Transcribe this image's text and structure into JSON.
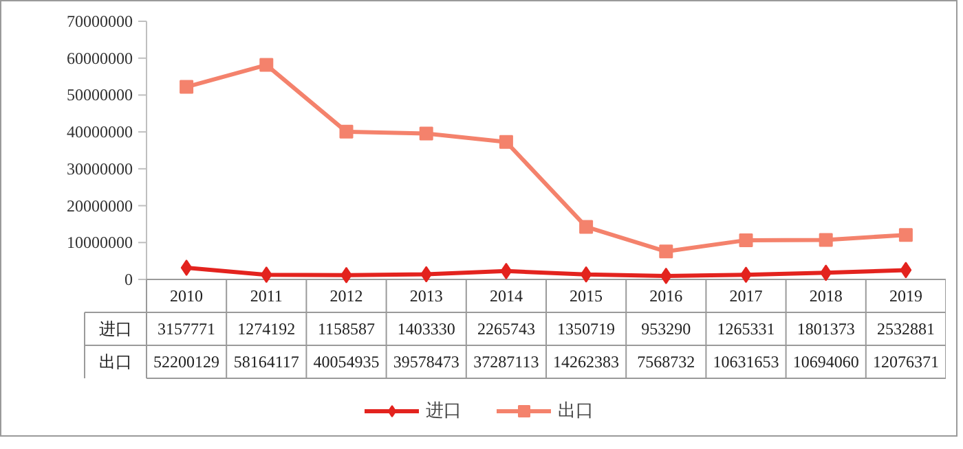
{
  "chart_data": {
    "type": "line",
    "categories": [
      "2010",
      "2011",
      "2012",
      "2013",
      "2014",
      "2015",
      "2016",
      "2017",
      "2018",
      "2019"
    ],
    "series": [
      {
        "name": "进口",
        "color": "#e3231e",
        "marker": "diamond",
        "values": [
          3157771,
          1274192,
          1158587,
          1403330,
          2265743,
          1350719,
          953290,
          1265331,
          1801373,
          2532881
        ]
      },
      {
        "name": "出口",
        "color": "#f4826c",
        "marker": "square",
        "values": [
          52200129,
          58164117,
          40054935,
          39578473,
          37287113,
          14262383,
          7568732,
          10631653,
          10694060,
          12076371
        ]
      }
    ],
    "ylim": [
      0,
      70000000
    ],
    "yticks": [
      0,
      10000000,
      20000000,
      30000000,
      40000000,
      50000000,
      60000000,
      70000000
    ],
    "grid": false,
    "legend": "bottom",
    "data_labels": true,
    "line_style": "solid"
  }
}
